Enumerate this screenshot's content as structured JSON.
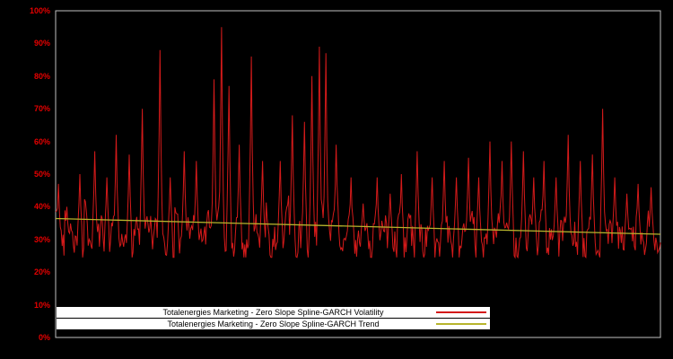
{
  "page": {
    "background": "#000000",
    "plot_border_color": "#c0c0c0",
    "axis_label_color": "#e60000"
  },
  "chart_data": {
    "type": "line",
    "title": "",
    "xlabel": "",
    "ylabel": "",
    "ylim": [
      0,
      100
    ],
    "yticks": [
      "0%",
      "10%",
      "20%",
      "30%",
      "40%",
      "50%",
      "60%",
      "70%",
      "80%",
      "90%",
      "100%"
    ],
    "grid": false,
    "legend_position": "bottom-center",
    "legend_background": "#ffffff",
    "legend_text_color": "#000000",
    "series": [
      {
        "name": "Totalenergies Marketing - Zero Slope Spline-GARCH Volatility",
        "type": "line",
        "color": "#d41a1a",
        "description": "Spiky daily volatility series oscillating mostly between 25% and 50% with sharp spikes",
        "generator": {
          "n_points": 650,
          "seed": 42,
          "base": 30.5,
          "noise_amp": 7,
          "min": 24.5,
          "max": 97,
          "spikes": [
            [
              0.004,
              47
            ],
            [
              0.018,
              40
            ],
            [
              0.04,
              50
            ],
            [
              0.065,
              57
            ],
            [
              0.085,
              49
            ],
            [
              0.1,
              62
            ],
            [
              0.122,
              56
            ],
            [
              0.143,
              70
            ],
            [
              0.172,
              88
            ],
            [
              0.19,
              49
            ],
            [
              0.212,
              57
            ],
            [
              0.232,
              54
            ],
            [
              0.262,
              79
            ],
            [
              0.274,
              95
            ],
            [
              0.286,
              77
            ],
            [
              0.303,
              59
            ],
            [
              0.323,
              86
            ],
            [
              0.342,
              54
            ],
            [
              0.372,
              54
            ],
            [
              0.392,
              68
            ],
            [
              0.412,
              66
            ],
            [
              0.424,
              80
            ],
            [
              0.436,
              89
            ],
            [
              0.447,
              87
            ],
            [
              0.464,
              59
            ],
            [
              0.488,
              49
            ],
            [
              0.508,
              41
            ],
            [
              0.532,
              49
            ],
            [
              0.553,
              44
            ],
            [
              0.572,
              50
            ],
            [
              0.598,
              57
            ],
            [
              0.622,
              49
            ],
            [
              0.643,
              54
            ],
            [
              0.663,
              49
            ],
            [
              0.682,
              55
            ],
            [
              0.7,
              49
            ],
            [
              0.718,
              60
            ],
            [
              0.738,
              54
            ],
            [
              0.754,
              60
            ],
            [
              0.773,
              57
            ],
            [
              0.79,
              49
            ],
            [
              0.808,
              54
            ],
            [
              0.828,
              49
            ],
            [
              0.848,
              62
            ],
            [
              0.868,
              54
            ],
            [
              0.888,
              56
            ],
            [
              0.904,
              70
            ],
            [
              0.924,
              49
            ],
            [
              0.944,
              44
            ],
            [
              0.963,
              47
            ],
            [
              0.984,
              46
            ]
          ]
        }
      },
      {
        "name": "Totalenergies Marketing - Zero Slope Spline-GARCH Trend",
        "type": "line",
        "color": "#b7b42c",
        "description": "Nearly flat, slightly declining trend line",
        "points": [
          [
            0,
            36.4
          ],
          [
            1,
            31.6
          ]
        ]
      }
    ]
  }
}
